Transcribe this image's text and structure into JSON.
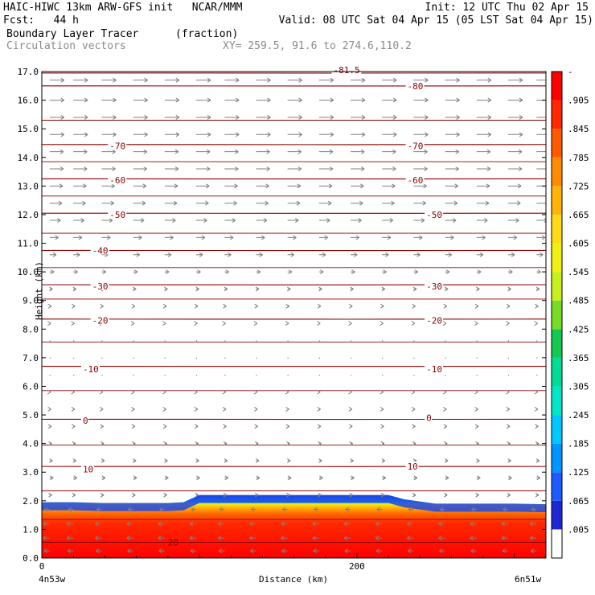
{
  "header": {
    "title": "HAIC-HIWC 13km ARW-GFS init   NCAR/MMM",
    "init": "Init: 12 UTC Thu 02 Apr 15",
    "fcst": "Fcst:   44 h",
    "valid": "Valid: 08 UTC Sat 04 Apr 15 (05 LST Sat 04 Apr 15)",
    "field": "Boundary Layer Tracer",
    "units": "(fraction)",
    "vectors": "Circulation vectors",
    "xy": "XY= 259.5, 91.6 to 274.6,110.2"
  },
  "colors": {
    "contour": "#8b0000",
    "vector": "#808080"
  },
  "chart_data": {
    "type": "heatmap",
    "ylabel": "Height (km)",
    "xlabel": "Distance (km)",
    "ylim": [
      0,
      17
    ],
    "xlim": [
      0,
      320
    ],
    "yticks": [
      "0.0",
      "1.0",
      "2.0",
      "3.0",
      "4.0",
      "5.0",
      "6.0",
      "7.0",
      "8.0",
      "9.0",
      "10.0",
      "11.0",
      "12.0",
      "13.0",
      "14.0",
      "15.0",
      "16.0",
      "17.0"
    ],
    "xticks": [
      {
        "value": 0,
        "label": "0"
      },
      {
        "value": 200,
        "label": "200"
      }
    ],
    "x_end_labels": {
      "left": "4n53w",
      "right": "6n51w"
    },
    "colorbar": {
      "levels": [
        ".005",
        ".065",
        ".125",
        ".185",
        ".245",
        ".305",
        ".365",
        ".425",
        ".485",
        ".545",
        ".605",
        ".665",
        ".725",
        ".785",
        ".845",
        ".905"
      ],
      "top_label": "-",
      "colors": [
        "#ffffff",
        "#1e28d2",
        "#1e5aff",
        "#0096ff",
        "#00c8ff",
        "#00e6c8",
        "#00dc96",
        "#14c850",
        "#78dc28",
        "#c8f01e",
        "#f0f014",
        "#ffdc14",
        "#ffb40a",
        "#ff8c00",
        "#ff5a00",
        "#ff2800",
        "#ff0000"
      ]
    },
    "tracer_layer": {
      "top_km": [
        1.95,
        1.95,
        1.92,
        1.92,
        1.92,
        1.95,
        2.2,
        2.2,
        2.2,
        2.2,
        2.2,
        2.2,
        2.2,
        2.05,
        1.9,
        1.9,
        1.9,
        1.88
      ],
      "x_km": [
        0,
        20,
        40,
        60,
        80,
        90,
        100,
        120,
        140,
        160,
        180,
        200,
        220,
        230,
        250,
        270,
        300,
        320
      ]
    },
    "temperature_contours": [
      {
        "label": "0",
        "height_km": 4.85
      },
      {
        "label": "-10",
        "height_km": 6.7
      },
      {
        "label": "-20",
        "height_km": 8.35
      },
      {
        "label": "-30",
        "height_km": 9.55
      },
      {
        "label": "-40",
        "height_km": 10.75
      },
      {
        "label": "-50",
        "height_km": 12.05
      },
      {
        "label": "-60",
        "height_km": 13.25
      },
      {
        "label": "-70",
        "height_km": 14.45
      },
      {
        "label": "-80",
        "height_km": 16.5
      },
      {
        "label": "-81.5",
        "height_km": 16.95
      },
      {
        "label": "10",
        "height_km": 3.2
      },
      {
        "label": "20",
        "height_km": 0.55
      }
    ],
    "contour_labels": [
      {
        "text": "-81.5",
        "x_km": 185,
        "y_km": 17.05
      },
      {
        "text": "-80",
        "x_km": 232,
        "y_km": 16.5
      },
      {
        "text": "-70",
        "x_km": 43,
        "y_km": 14.4
      },
      {
        "text": "-70",
        "x_km": 232,
        "y_km": 14.4
      },
      {
        "text": "-60",
        "x_km": 43,
        "y_km": 13.2
      },
      {
        "text": "-60",
        "x_km": 232,
        "y_km": 13.2
      },
      {
        "text": "-50",
        "x_km": 43,
        "y_km": 12.0
      },
      {
        "text": "-50",
        "x_km": 244,
        "y_km": 12.0
      },
      {
        "text": "-40",
        "x_km": 32,
        "y_km": 10.75
      },
      {
        "text": "-30",
        "x_km": 32,
        "y_km": 9.5
      },
      {
        "text": "-30",
        "x_km": 244,
        "y_km": 9.5
      },
      {
        "text": "-20",
        "x_km": 32,
        "y_km": 8.3
      },
      {
        "text": "-20",
        "x_km": 244,
        "y_km": 8.3
      },
      {
        "text": "-10",
        "x_km": 26,
        "y_km": 6.6
      },
      {
        "text": "-10",
        "x_km": 244,
        "y_km": 6.6
      },
      {
        "text": "0",
        "x_km": 26,
        "y_km": 4.8
      },
      {
        "text": "0",
        "x_km": 244,
        "y_km": 4.9
      },
      {
        "text": "10",
        "x_km": 26,
        "y_km": 3.1
      },
      {
        "text": "10",
        "x_km": 232,
        "y_km": 3.2
      },
      {
        "text": "20",
        "x_km": 80,
        "y_km": 0.55
      }
    ],
    "vectors": {
      "columns_x_km": [
        5,
        20,
        38,
        58,
        78,
        98,
        116,
        136,
        156,
        176,
        196,
        216,
        236,
        256,
        276,
        296,
        314
      ],
      "levels": [
        {
          "height_km": 16.7,
          "u": 1.0
        },
        {
          "height_km": 16.0,
          "u": 1.0
        },
        {
          "height_km": 15.4,
          "u": 1.0
        },
        {
          "height_km": 14.8,
          "u": 1.0
        },
        {
          "height_km": 14.2,
          "u": 0.95
        },
        {
          "height_km": 13.6,
          "u": 0.95
        },
        {
          "height_km": 13.0,
          "u": 0.9
        },
        {
          "height_km": 12.4,
          "u": 0.85
        },
        {
          "height_km": 11.8,
          "u": 0.75
        },
        {
          "height_km": 11.2,
          "u": 0.6
        },
        {
          "height_km": 10.6,
          "u": 0.45
        },
        {
          "height_km": 10.0,
          "u": 0.3
        },
        {
          "height_km": 9.4,
          "u": 0.2
        },
        {
          "height_km": 8.8,
          "u": 0.12
        },
        {
          "height_km": 8.2,
          "u": 0.08
        },
        {
          "height_km": 7.6,
          "u": 0.05
        },
        {
          "height_km": 7.0,
          "u": 0.05
        },
        {
          "height_km": 6.4,
          "u": 0.05
        },
        {
          "height_km": 5.8,
          "u": 0.08
        },
        {
          "height_km": 5.2,
          "u": 0.1
        },
        {
          "height_km": 4.6,
          "u": 0.12
        },
        {
          "height_km": 4.0,
          "u": 0.15
        },
        {
          "height_km": 3.4,
          "u": 0.2
        },
        {
          "height_km": 2.8,
          "u": 0.25
        },
        {
          "height_km": 2.2,
          "u": 0.15
        },
        {
          "height_km": 1.7,
          "u": -0.35
        },
        {
          "height_km": 1.2,
          "u": -0.45
        },
        {
          "height_km": 0.7,
          "u": -0.45
        },
        {
          "height_km": 0.25,
          "u": -0.4
        }
      ]
    }
  }
}
